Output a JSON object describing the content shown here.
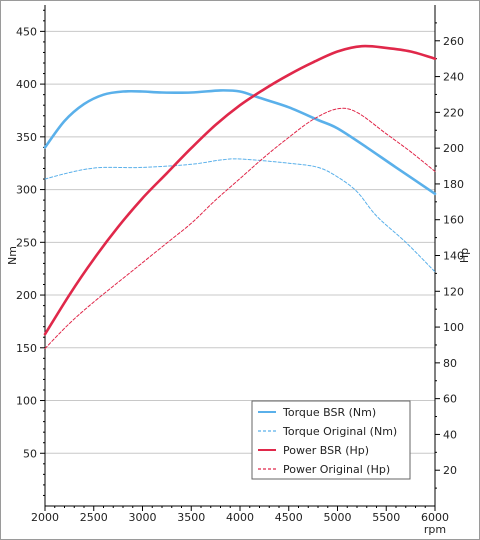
{
  "chart_data": {
    "type": "line",
    "x_label": "rpm",
    "x_range": [
      2000,
      6000
    ],
    "x_ticks": [
      2000,
      2500,
      3000,
      3500,
      4000,
      4500,
      5000,
      5500,
      6000
    ],
    "y_left": {
      "label": "Nm",
      "range": [
        0,
        475
      ],
      "ticks": [
        50,
        100,
        150,
        200,
        250,
        300,
        350,
        400,
        450
      ]
    },
    "y_right": {
      "label": "Hp",
      "range": [
        0,
        280
      ],
      "ticks": [
        20,
        40,
        60,
        80,
        100,
        120,
        140,
        160,
        180,
        200,
        220,
        240,
        260
      ]
    },
    "grid": true,
    "legend_position": "bottom-right",
    "series": [
      {
        "name": "Torque BSR (Nm)",
        "axis": "left",
        "style": "solid",
        "color": "#5ab0ea",
        "points": [
          [
            2000,
            340
          ],
          [
            2200,
            365
          ],
          [
            2400,
            381
          ],
          [
            2600,
            390
          ],
          [
            2800,
            393
          ],
          [
            3000,
            393
          ],
          [
            3200,
            392
          ],
          [
            3500,
            392
          ],
          [
            3800,
            394
          ],
          [
            4000,
            393
          ],
          [
            4200,
            387
          ],
          [
            4500,
            378
          ],
          [
            4800,
            366
          ],
          [
            5000,
            358
          ],
          [
            5300,
            340
          ],
          [
            5600,
            321
          ],
          [
            6000,
            296
          ]
        ]
      },
      {
        "name": "Torque Original (Nm)",
        "axis": "left",
        "style": "dashed",
        "color": "#5ab0ea",
        "points": [
          [
            2000,
            310
          ],
          [
            2200,
            315
          ],
          [
            2400,
            319
          ],
          [
            2600,
            321
          ],
          [
            3000,
            321
          ],
          [
            3500,
            324
          ],
          [
            3800,
            328
          ],
          [
            4000,
            329
          ],
          [
            4500,
            325
          ],
          [
            4800,
            321
          ],
          [
            5000,
            312
          ],
          [
            5200,
            298
          ],
          [
            5400,
            275
          ],
          [
            5700,
            250
          ],
          [
            6000,
            222
          ]
        ]
      },
      {
        "name": "Power BSR (Hp)",
        "axis": "right",
        "style": "solid",
        "color": "#e0284a",
        "points": [
          [
            2000,
            96
          ],
          [
            2250,
            118
          ],
          [
            2500,
            138
          ],
          [
            2750,
            156
          ],
          [
            3000,
            172
          ],
          [
            3250,
            186
          ],
          [
            3500,
            200
          ],
          [
            3750,
            213
          ],
          [
            4000,
            224
          ],
          [
            4250,
            233
          ],
          [
            4500,
            241
          ],
          [
            4750,
            248
          ],
          [
            5000,
            254
          ],
          [
            5250,
            257
          ],
          [
            5500,
            256
          ],
          [
            5750,
            254
          ],
          [
            6000,
            250
          ]
        ]
      },
      {
        "name": "Power Original (Hp)",
        "axis": "right",
        "style": "dashed",
        "color": "#e0284a",
        "points": [
          [
            2000,
            88
          ],
          [
            2250,
            102
          ],
          [
            2500,
            114
          ],
          [
            2750,
            125
          ],
          [
            3000,
            136
          ],
          [
            3250,
            147
          ],
          [
            3500,
            158
          ],
          [
            3750,
            171
          ],
          [
            4000,
            183
          ],
          [
            4250,
            195
          ],
          [
            4500,
            206
          ],
          [
            4750,
            216
          ],
          [
            5000,
            222
          ],
          [
            5200,
            220
          ],
          [
            5500,
            208
          ],
          [
            5750,
            198
          ],
          [
            6000,
            187
          ]
        ]
      }
    ]
  }
}
